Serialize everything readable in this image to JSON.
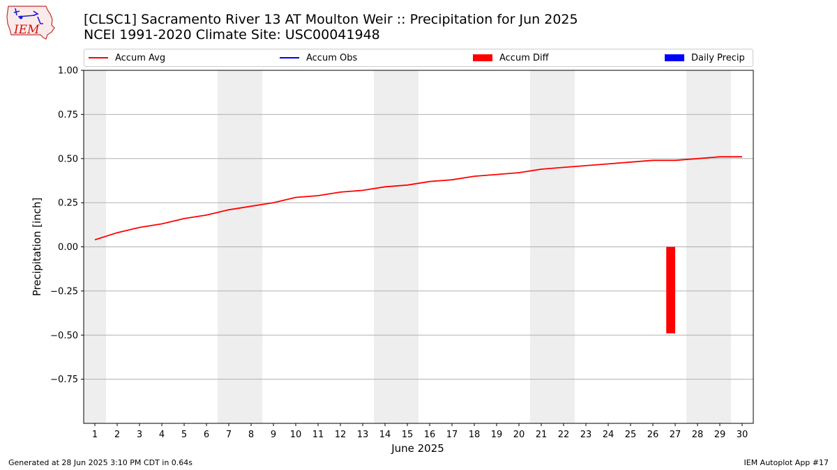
{
  "header": {
    "title_line1": "[CLSC1] Sacramento River 13 AT Moulton Weir :: Precipitation for Jun 2025",
    "title_line2": "NCEI 1991-2020 Climate Site: USC00041948"
  },
  "logo": {
    "text": "IEM"
  },
  "colors": {
    "accum_avg": "#ff0000",
    "accum_obs": "#0000ff",
    "accum_diff": "#ff0000",
    "daily_precip": "#0000ff",
    "weekend_band": "#eeeeee",
    "grid": "#b0b0b0"
  },
  "footer": {
    "left": "Generated at 28 Jun 2025 3:10 PM CDT in 0.64s",
    "right": "IEM Autoplot App #17"
  },
  "chart_data": {
    "type": "line",
    "xlabel": "June 2025",
    "ylabel": "Precipitation [inch]",
    "ylim": [
      -1.0,
      1.0
    ],
    "yticks": [
      1.0,
      0.75,
      0.5,
      0.25,
      0.0,
      -0.25,
      -0.5,
      -0.75
    ],
    "ytick_labels": [
      "1.00",
      "0.75",
      "0.50",
      "0.25",
      "0.00",
      "−0.25",
      "−0.50",
      "−0.75"
    ],
    "x": [
      1,
      2,
      3,
      4,
      5,
      6,
      7,
      8,
      9,
      10,
      11,
      12,
      13,
      14,
      15,
      16,
      17,
      18,
      19,
      20,
      21,
      22,
      23,
      24,
      25,
      26,
      27,
      28,
      29,
      30
    ],
    "xtick_labels": [
      "1",
      "2",
      "3",
      "4",
      "5",
      "6",
      "7",
      "8",
      "9",
      "10",
      "11",
      "12",
      "13",
      "14",
      "15",
      "16",
      "17",
      "18",
      "19",
      "20",
      "21",
      "22",
      "23",
      "24",
      "25",
      "26",
      "27",
      "28",
      "29",
      "30"
    ],
    "grid": true,
    "legend_position": "top",
    "legend": [
      "Accum Avg",
      "Accum Obs",
      "Accum Diff",
      "Daily Precip"
    ],
    "weekend_days": [
      1,
      7,
      8,
      14,
      15,
      21,
      22,
      28,
      29
    ],
    "series": [
      {
        "name": "Accum Avg",
        "type": "line",
        "values": [
          0.04,
          0.08,
          0.11,
          0.13,
          0.16,
          0.18,
          0.21,
          0.23,
          0.25,
          0.28,
          0.29,
          0.31,
          0.32,
          0.34,
          0.35,
          0.37,
          0.38,
          0.4,
          0.41,
          0.42,
          0.44,
          0.45,
          0.46,
          0.47,
          0.48,
          0.49,
          0.49,
          0.5,
          0.51,
          0.51
        ]
      },
      {
        "name": "Accum Diff",
        "type": "bar",
        "x": [
          27
        ],
        "values": [
          -0.49
        ]
      }
    ]
  }
}
